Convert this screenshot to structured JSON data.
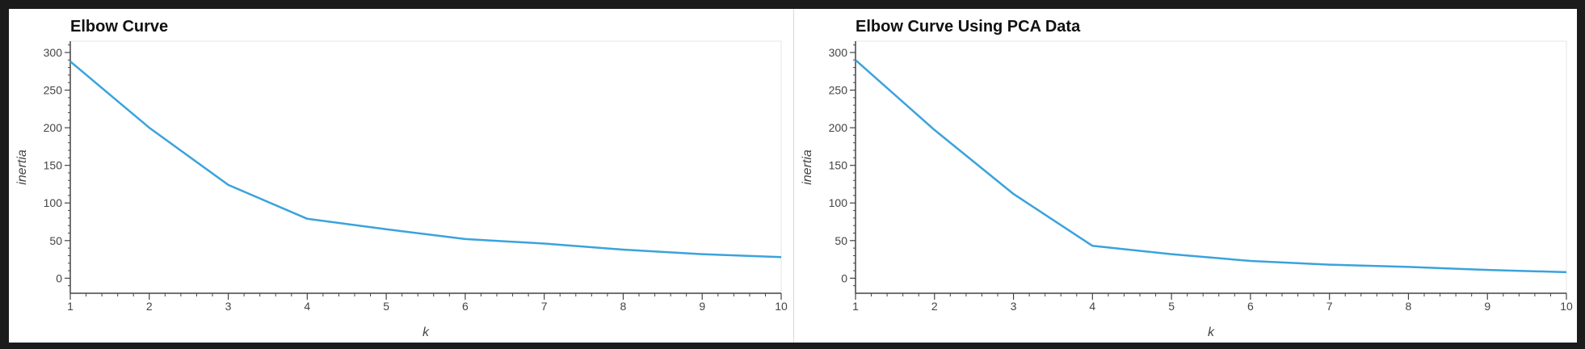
{
  "colors": {
    "line": "#3aa3dc",
    "axis": "#444444",
    "text": "#444444",
    "title": "#111111",
    "plot_border": "#e5e5e5"
  },
  "chart_data": [
    {
      "type": "line",
      "title": "Elbow Curve",
      "xlabel": "k",
      "ylabel": "inertia",
      "x": [
        1,
        2,
        3,
        4,
        5,
        6,
        7,
        8,
        9,
        10
      ],
      "series": [
        {
          "values": [
            288,
            200,
            124,
            79,
            65,
            52,
            46,
            38,
            32,
            28
          ]
        }
      ],
      "xlim": [
        1,
        10
      ],
      "ylim": [
        -20,
        315
      ],
      "xticks": [
        1,
        2,
        3,
        4,
        5,
        6,
        7,
        8,
        9,
        10
      ],
      "yticks": [
        0,
        50,
        100,
        150,
        200,
        250,
        300
      ],
      "grid": false,
      "legend": "none"
    },
    {
      "type": "line",
      "title": "Elbow Curve Using PCA Data",
      "xlabel": "k",
      "ylabel": "inertia",
      "x": [
        1,
        2,
        3,
        4,
        5,
        6,
        7,
        8,
        9,
        10
      ],
      "series": [
        {
          "values": [
            290,
            197,
            112,
            43,
            32,
            23,
            18,
            15,
            11,
            8
          ]
        }
      ],
      "xlim": [
        1,
        10
      ],
      "ylim": [
        -20,
        315
      ],
      "xticks": [
        1,
        2,
        3,
        4,
        5,
        6,
        7,
        8,
        9,
        10
      ],
      "yticks": [
        0,
        50,
        100,
        150,
        200,
        250,
        300
      ],
      "grid": false,
      "legend": "none"
    }
  ]
}
